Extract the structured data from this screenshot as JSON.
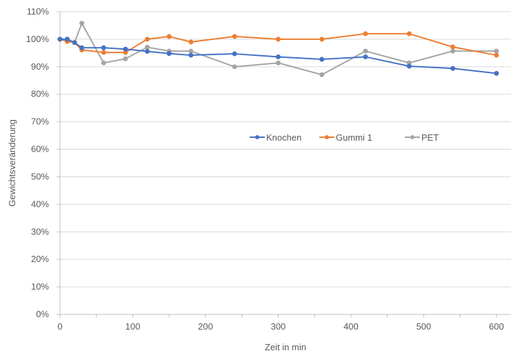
{
  "chart_data": {
    "type": "line",
    "title": "",
    "xlabel": "Zeit in min",
    "ylabel": "Gewichtsveränderung",
    "xlim": [
      0,
      620
    ],
    "ylim": [
      0,
      110
    ],
    "x_ticks": [
      0,
      100,
      200,
      300,
      400,
      500,
      600
    ],
    "y_ticks": [
      0,
      10,
      20,
      30,
      40,
      50,
      60,
      70,
      80,
      90,
      100,
      110
    ],
    "y_tick_labels": [
      "0%",
      "10%",
      "20%",
      "30%",
      "40%",
      "50%",
      "60%",
      "70%",
      "80%",
      "90%",
      "100%",
      "110%"
    ],
    "grid": "horizontal",
    "legend_position": "center-right",
    "series": [
      {
        "name": "Knochen",
        "color": "#4472C4",
        "x": [
          0,
          10,
          20,
          30,
          60,
          90,
          120,
          150,
          180,
          240,
          300,
          360,
          420,
          480,
          540,
          600
        ],
        "values": [
          100.0,
          100.0,
          98.8,
          96.9,
          96.9,
          96.4,
          95.6,
          94.8,
          94.2,
          94.7,
          93.6,
          92.7,
          93.6,
          90.2,
          89.4,
          87.6
        ]
      },
      {
        "name": "Gummi 1",
        "color": "#ED7D31",
        "x": [
          0,
          10,
          20,
          30,
          60,
          90,
          120,
          150,
          180,
          240,
          300,
          360,
          420,
          480,
          540,
          600
        ],
        "values": [
          100.0,
          99.2,
          98.8,
          96.1,
          95.2,
          95.2,
          100.0,
          101.0,
          99.0,
          101.0,
          100.0,
          100.0,
          102.0,
          102.0,
          97.2,
          94.2
        ]
      },
      {
        "name": "PET",
        "color": "#A5A5A5",
        "x": [
          0,
          10,
          20,
          30,
          60,
          90,
          120,
          150,
          180,
          240,
          300,
          360,
          420,
          480,
          540,
          600
        ],
        "values": [
          100.0,
          100.0,
          98.8,
          105.8,
          91.4,
          92.9,
          97.1,
          95.7,
          95.7,
          90.0,
          91.4,
          87.1,
          95.7,
          91.4,
          95.7,
          95.7
        ]
      }
    ]
  }
}
